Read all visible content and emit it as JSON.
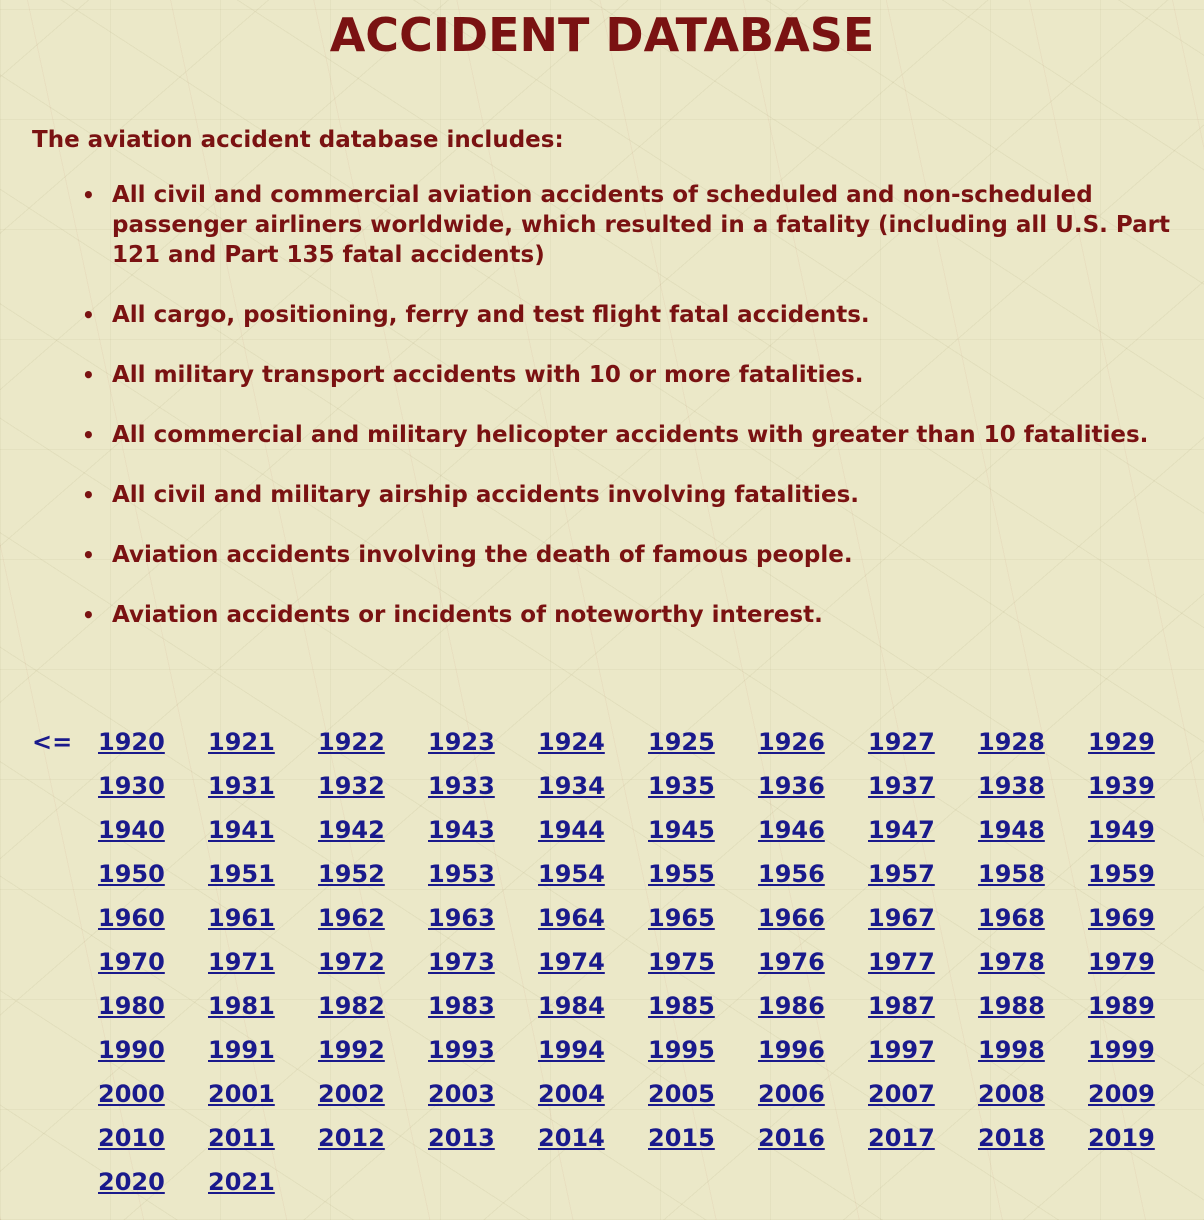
{
  "header": {
    "title": "ACCIDENT DATABASE"
  },
  "intro": {
    "text": "The aviation accident database includes:"
  },
  "includes": [
    "All civil and commercial aviation accidents of scheduled and non-scheduled passenger airliners worldwide, which resulted in a fatality (including all U.S. Part 121 and Part 135 fatal accidents)",
    "All cargo, positioning, ferry and test flight fatal accidents.",
    "All military transport accidents with 10 or more fatalities.",
    "All commercial and military helicopter accidents with greater than 10 fatalities.",
    "All civil and military airship accidents involving fatalities.",
    "Aviation accidents involving the death of famous people.",
    "Aviation accidents or incidents of noteworthy interest."
  ],
  "bullet_char": "•",
  "nav": {
    "back_label": "<="
  },
  "years": [
    "1920",
    "1921",
    "1922",
    "1923",
    "1924",
    "1925",
    "1926",
    "1927",
    "1928",
    "1929",
    "1930",
    "1931",
    "1932",
    "1933",
    "1934",
    "1935",
    "1936",
    "1937",
    "1938",
    "1939",
    "1940",
    "1941",
    "1942",
    "1943",
    "1944",
    "1945",
    "1946",
    "1947",
    "1948",
    "1949",
    "1950",
    "1951",
    "1952",
    "1953",
    "1954",
    "1955",
    "1956",
    "1957",
    "1958",
    "1959",
    "1960",
    "1961",
    "1962",
    "1963",
    "1964",
    "1965",
    "1966",
    "1967",
    "1968",
    "1969",
    "1970",
    "1971",
    "1972",
    "1973",
    "1974",
    "1975",
    "1976",
    "1977",
    "1978",
    "1979",
    "1980",
    "1981",
    "1982",
    "1983",
    "1984",
    "1985",
    "1986",
    "1987",
    "1988",
    "1989",
    "1990",
    "1991",
    "1992",
    "1993",
    "1994",
    "1995",
    "1996",
    "1997",
    "1998",
    "1999",
    "2000",
    "2001",
    "2002",
    "2003",
    "2004",
    "2005",
    "2006",
    "2007",
    "2008",
    "2009",
    "2010",
    "2011",
    "2012",
    "2013",
    "2014",
    "2015",
    "2016",
    "2017",
    "2018",
    "2019",
    "2020",
    "2021"
  ],
  "colors": {
    "heading": "#7a1212",
    "link": "#1a1a8c",
    "background": "#ebe8c8"
  }
}
